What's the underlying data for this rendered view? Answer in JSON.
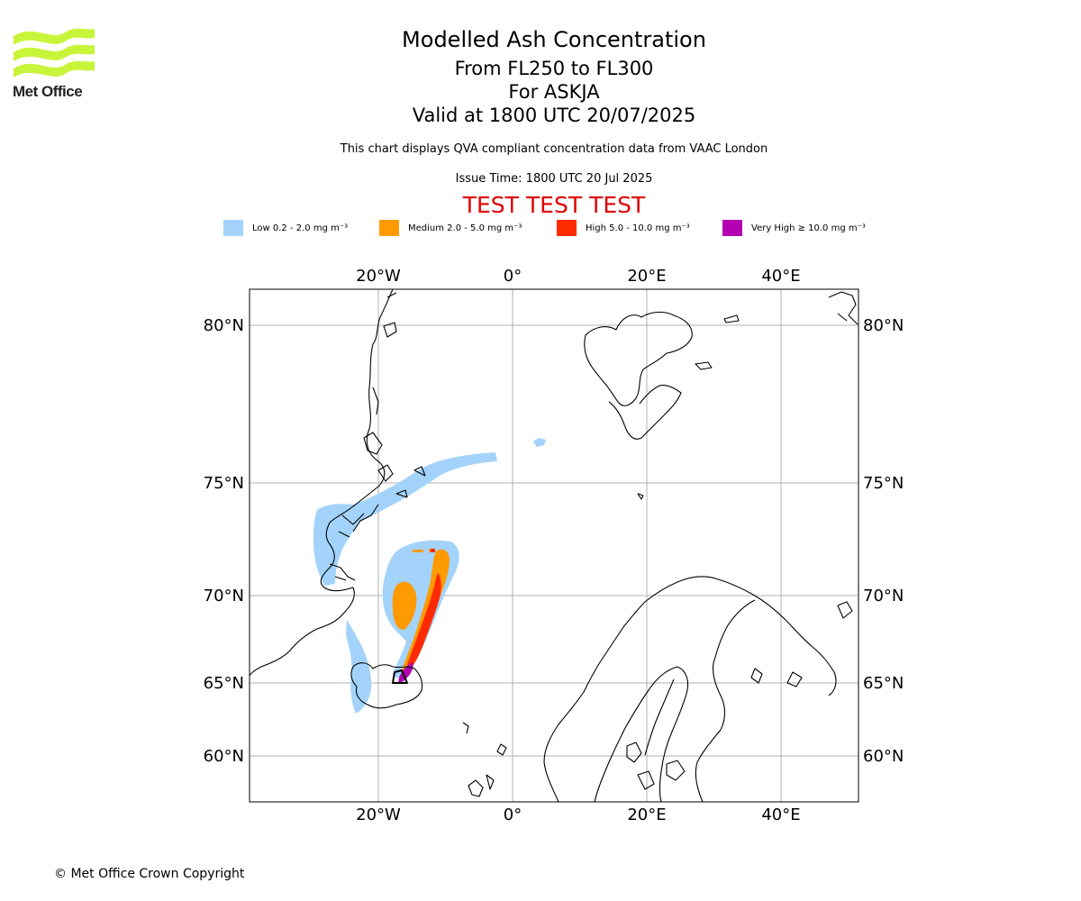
{
  "header": {
    "logo_text": "Met Office",
    "title": "Modelled Ash Concentration",
    "level": "From FL250 to FL300",
    "volcano": "For ASKJA",
    "valid": "Valid at 1800 UTC 20/07/2025",
    "description": "This chart displays QVA compliant concentration data from VAAC London",
    "issue_time": "Issue Time: 1800 UTC 20 Jul 2025",
    "test_banner": "TEST TEST TEST"
  },
  "legend": [
    {
      "label": "Low 0.2 - 2.0 mg m⁻³",
      "color": "#a3d3fa"
    },
    {
      "label": "Medium 2.0 - 5.0 mg m⁻³",
      "color": "#ff9a00"
    },
    {
      "label": "High 5.0 - 10.0 mg m⁻³",
      "color": "#ff2b00"
    },
    {
      "label": "Very High ≥ 10.0 mg m⁻³",
      "color": "#b300b3"
    }
  ],
  "map": {
    "lon_ticks": [
      "20°W",
      "0°",
      "20°E",
      "40°E"
    ],
    "lat_ticks": [
      "80°N",
      "75°N",
      "70°N",
      "65°N",
      "60°N"
    ]
  },
  "colors": {
    "logo": "#c8f53a",
    "coast": "#000000",
    "grid": "#b0b0b0"
  },
  "footer": "© Met Office Crown Copyright"
}
